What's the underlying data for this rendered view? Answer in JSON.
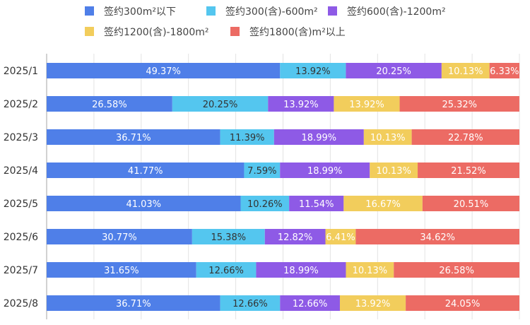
{
  "chart_data": {
    "type": "bar",
    "orientation": "horizontal",
    "stacked": true,
    "percent": true,
    "xlim": [
      0,
      100
    ],
    "grid": true,
    "legend_position": "top",
    "categories": [
      "2025/1",
      "2025/2",
      "2025/3",
      "2025/4",
      "2025/5",
      "2025/6",
      "2025/7",
      "2025/8"
    ],
    "series": [
      {
        "name": "签约300m²以下",
        "color": "#4f7fe8",
        "label_color": "#ffffff",
        "values": [
          49.37,
          26.58,
          36.71,
          41.77,
          41.03,
          30.77,
          31.65,
          36.71
        ],
        "labels": [
          "49.37%",
          "26.58%",
          "36.71%",
          "41.77%",
          "41.03%",
          "30.77%",
          "31.65%",
          "36.71%"
        ]
      },
      {
        "name": "签约300(含)-600m²",
        "color": "#54c6ef",
        "label_color": "#333333",
        "values": [
          13.92,
          20.25,
          11.39,
          7.59,
          10.26,
          15.38,
          12.66,
          12.66
        ],
        "labels": [
          "13.92%",
          "20.25%",
          "11.39%",
          "7.59%",
          "10.26%",
          "15.38%",
          "12.66%",
          "12.66%"
        ]
      },
      {
        "name": "签约600(含)-1200m²",
        "color": "#8e5ae6",
        "label_color": "#ffffff",
        "values": [
          20.25,
          13.92,
          18.99,
          18.99,
          11.54,
          12.82,
          18.99,
          12.66
        ],
        "labels": [
          "20.25%",
          "13.92%",
          "18.99%",
          "18.99%",
          "11.54%",
          "12.82%",
          "18.99%",
          "12.66%"
        ]
      },
      {
        "name": "签约1200(含)-1800m²",
        "color": "#f2cd5c",
        "label_color": "#ffffff",
        "values": [
          10.13,
          13.92,
          10.13,
          10.13,
          16.67,
          6.41,
          10.13,
          13.92
        ],
        "labels": [
          "10.13%",
          "13.92%",
          "10.13%",
          "10.13%",
          "16.67%",
          "6.41%",
          "10.13%",
          "13.92%"
        ]
      },
      {
        "name": "签约1800(含)m²以上",
        "color": "#ec6b64",
        "label_color": "#ffffff",
        "values": [
          6.33,
          25.32,
          22.78,
          21.52,
          20.51,
          34.62,
          26.58,
          24.05
        ],
        "labels": [
          "6.33%",
          "25.32%",
          "22.78%",
          "21.52%",
          "20.51%",
          "34.62%",
          "26.58%",
          "24.05%"
        ]
      }
    ]
  }
}
